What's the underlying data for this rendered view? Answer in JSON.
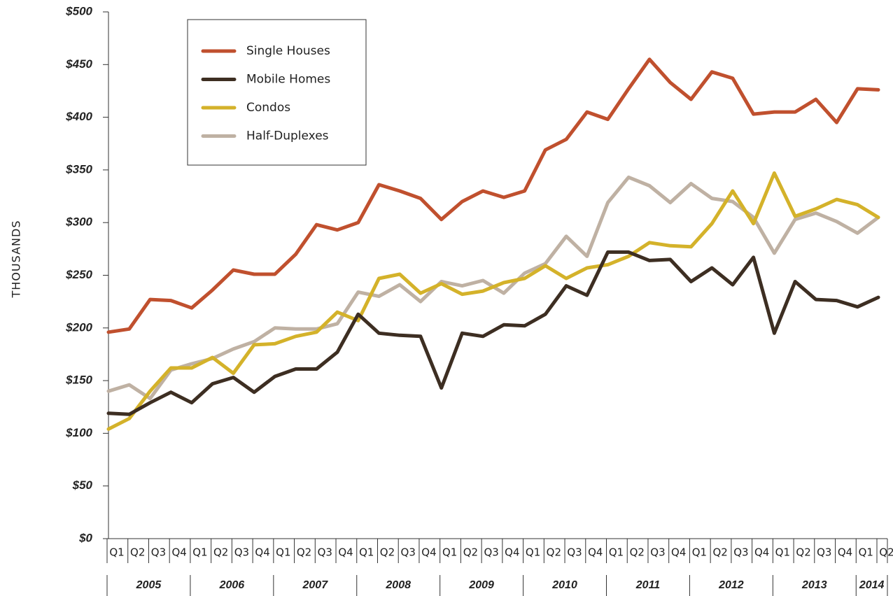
{
  "chart_data": {
    "type": "line",
    "y_axis_label": "THOUSANDS",
    "categories": [
      "Q1",
      "Q2",
      "Q3",
      "Q4",
      "Q1",
      "Q2",
      "Q3",
      "Q4",
      "Q1",
      "Q2",
      "Q3",
      "Q4",
      "Q1",
      "Q2",
      "Q3",
      "Q4",
      "Q1",
      "Q2",
      "Q3",
      "Q4",
      "Q1",
      "Q2",
      "Q3",
      "Q4",
      "Q1",
      "Q2",
      "Q3",
      "Q4",
      "Q1",
      "Q2",
      "Q3",
      "Q4",
      "Q1",
      "Q2",
      "Q3",
      "Q4",
      "Q1",
      "Q2"
    ],
    "years": [
      "2005",
      "2006",
      "2007",
      "2008",
      "2009",
      "2010",
      "2011",
      "2012",
      "2013",
      "2014"
    ],
    "series": [
      {
        "name": "Single Houses",
        "color": "#c0502e",
        "values": [
          196,
          199,
          227,
          226,
          219,
          236,
          255,
          251,
          251,
          270,
          298,
          293,
          300,
          336,
          330,
          323,
          303,
          320,
          330,
          324,
          330,
          369,
          379,
          405,
          398,
          427,
          455,
          433,
          417,
          443,
          437,
          403,
          405,
          405,
          417,
          395,
          427,
          426
        ]
      },
      {
        "name": "Mobile Homes",
        "color": "#3d2e22",
        "values": [
          119,
          118,
          129,
          139,
          129,
          147,
          153,
          139,
          154,
          161,
          161,
          177,
          213,
          195,
          193,
          192,
          143,
          195,
          192,
          203,
          202,
          213,
          240,
          231,
          272,
          272,
          264,
          265,
          244,
          257,
          241,
          267,
          195,
          244,
          227,
          226,
          220,
          229
        ]
      },
      {
        "name": "Condos",
        "color": "#d4b22a",
        "values": [
          104,
          114,
          140,
          162,
          162,
          172,
          157,
          184,
          185,
          192,
          196,
          215,
          207,
          247,
          251,
          233,
          242,
          232,
          235,
          243,
          247,
          259,
          247,
          257,
          260,
          268,
          281,
          278,
          277,
          299,
          330,
          299,
          347,
          306,
          313,
          322,
          317,
          305
        ]
      },
      {
        "name": "Half-Duplexes",
        "color": "#bfb1a3",
        "values": [
          140,
          146,
          133,
          160,
          166,
          171,
          180,
          187,
          200,
          199,
          199,
          204,
          234,
          230,
          241,
          225,
          244,
          240,
          245,
          233,
          252,
          261,
          287,
          268,
          319,
          343,
          335,
          319,
          337,
          323,
          320,
          305,
          271,
          303,
          309,
          301,
          290,
          305
        ]
      }
    ],
    "ylim": [
      0,
      500
    ],
    "yticks": [
      {
        "value": 0,
        "label": "$0"
      },
      {
        "value": 50,
        "label": "$50"
      },
      {
        "value": 100,
        "label": "$100"
      },
      {
        "value": 150,
        "label": "$150"
      },
      {
        "value": 200,
        "label": "$200"
      },
      {
        "value": 250,
        "label": "$250"
      },
      {
        "value": 300,
        "label": "$300"
      },
      {
        "value": 350,
        "label": "$350"
      },
      {
        "value": 400,
        "label": "$400"
      },
      {
        "value": 450,
        "label": "$450"
      },
      {
        "value": 500,
        "label": "$500"
      }
    ],
    "legend": "upper left"
  }
}
